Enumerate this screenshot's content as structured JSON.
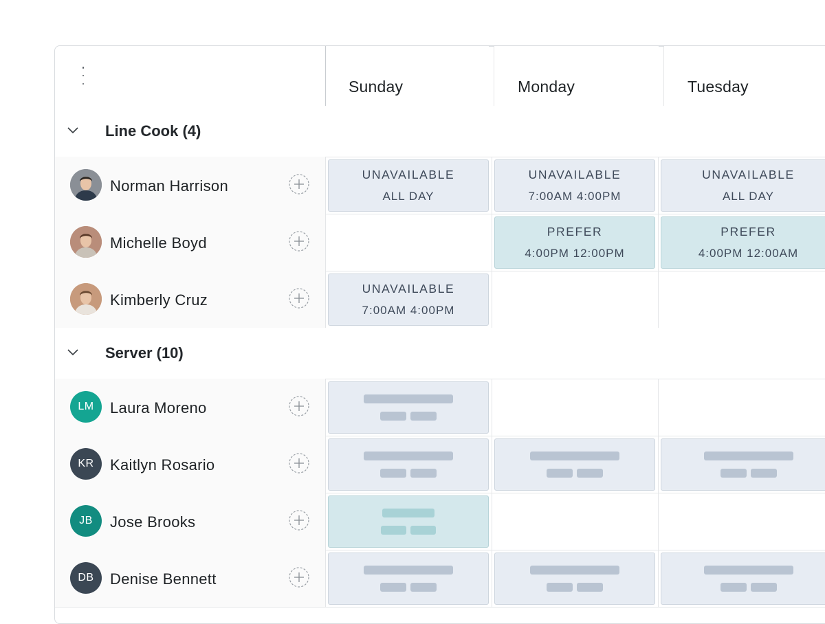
{
  "header": {
    "days": [
      "Sunday",
      "Monday",
      "Tuesday"
    ]
  },
  "groups": [
    {
      "title": "Line Cook (4)",
      "rows": [
        {
          "name": "Norman Harrison",
          "avatar": {
            "type": "photo",
            "icon": "person-photo-icon",
            "bg": "#8a8f96"
          },
          "cells": [
            {
              "kind": "unavailable",
              "line1": "UNAVAILABLE",
              "line2": "ALL DAY"
            },
            {
              "kind": "unavailable",
              "line1": "UNAVAILABLE",
              "line2": "7:00AM 4:00PM"
            },
            {
              "kind": "unavailable",
              "line1": "UNAVAILABLE",
              "line2": "ALL DAY"
            }
          ]
        },
        {
          "name": "Michelle Boyd",
          "avatar": {
            "type": "photo",
            "icon": "person-photo-icon",
            "bg": "#b98d7a"
          },
          "cells": [
            {
              "kind": "empty"
            },
            {
              "kind": "prefer",
              "line1": "PREFER",
              "line2": "4:00PM 12:00PM"
            },
            {
              "kind": "prefer",
              "line1": "PREFER",
              "line2": "4:00PM 12:00AM"
            }
          ]
        },
        {
          "name": "Kimberly Cruz",
          "avatar": {
            "type": "photo",
            "icon": "person-photo-icon",
            "bg": "#c79a7c"
          },
          "cells": [
            {
              "kind": "unavailable",
              "line1": "UNAVAILABLE",
              "line2": "7:00AM 4:00PM"
            },
            {
              "kind": "empty"
            },
            {
              "kind": "empty"
            }
          ]
        }
      ]
    },
    {
      "title": "Server (10)",
      "rows": [
        {
          "name": "Laura Moreno",
          "avatar": {
            "type": "initials",
            "initials": "LM",
            "bg": "#14a592"
          },
          "cells": [
            {
              "kind": "skeleton"
            },
            {
              "kind": "empty"
            },
            {
              "kind": "empty"
            }
          ]
        },
        {
          "name": "Kaitlyn Rosario",
          "avatar": {
            "type": "initials",
            "initials": "KR",
            "bg": "#3b4754"
          },
          "cells": [
            {
              "kind": "skeleton"
            },
            {
              "kind": "skeleton"
            },
            {
              "kind": "skeleton"
            }
          ]
        },
        {
          "name": "Jose Brooks",
          "avatar": {
            "type": "initials",
            "initials": "JB",
            "bg": "#128c80"
          },
          "cells": [
            {
              "kind": "skeleton-prefer"
            },
            {
              "kind": "empty"
            },
            {
              "kind": "empty"
            }
          ]
        },
        {
          "name": "Denise Bennett",
          "avatar": {
            "type": "initials",
            "initials": "DB",
            "bg": "#3b4754"
          },
          "cells": [
            {
              "kind": "skeleton"
            },
            {
              "kind": "skeleton"
            },
            {
              "kind": "skeleton"
            }
          ]
        }
      ]
    }
  ],
  "colors": {
    "unavailable_bg": "#e7ecf3",
    "prefer_bg": "#d4e8ec",
    "skeleton": "#b9c4d2",
    "skeleton_prefer": "#a8d2d6"
  }
}
